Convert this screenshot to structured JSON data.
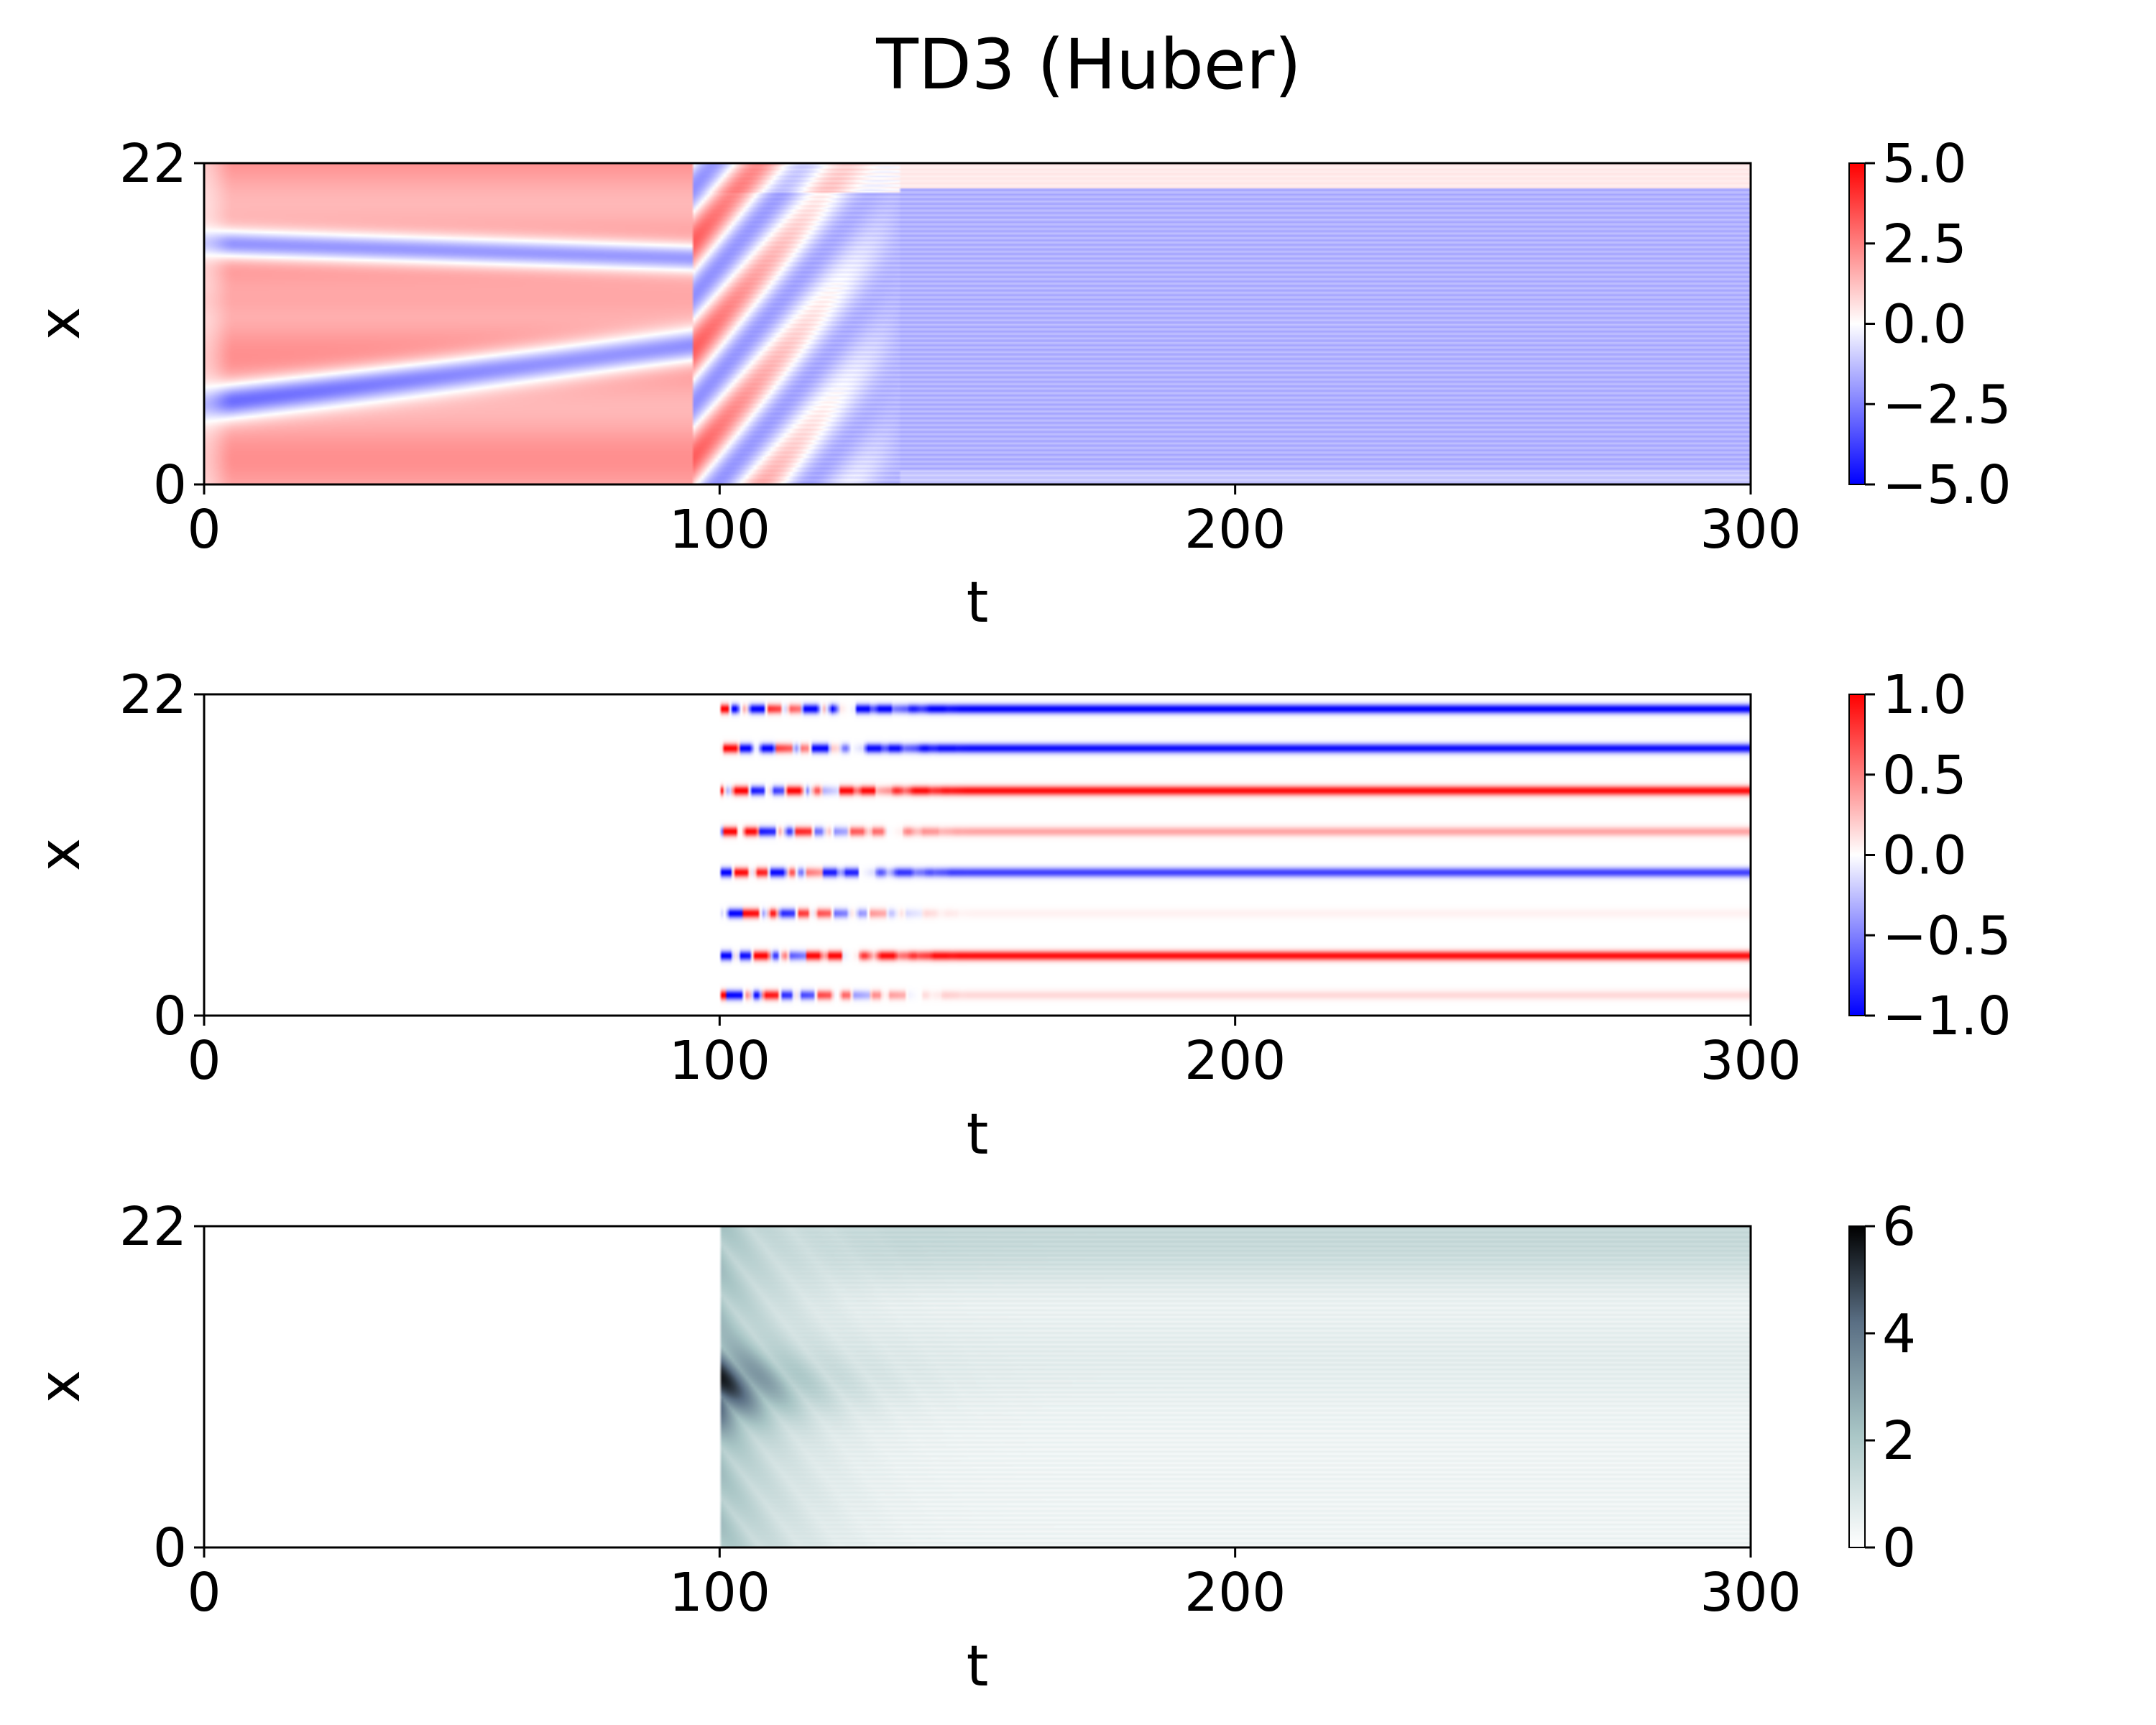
{
  "title": "TD3 (Huber)",
  "colors": {
    "diverging_neg": "#0000ff",
    "diverging_mid": "#ffffff",
    "diverging_pos": "#ff0000",
    "bone_low": "#ffffff",
    "bone_mid": "#a9c6c6",
    "bone_high": "#000000"
  },
  "chart_data": [
    {
      "type": "heatmap",
      "title": "",
      "xlabel": "t",
      "ylabel": "x",
      "xlim": [
        0,
        300
      ],
      "ylim": [
        0,
        22
      ],
      "xticks": [
        "0",
        "100",
        "200",
        "300"
      ],
      "yticks": [
        "0",
        "22"
      ],
      "colormap": "bwr",
      "clim": [
        -5.0,
        5.0
      ],
      "colorbar_ticks": [
        "5.0",
        "2.5",
        "0.0",
        "−2.5",
        "−5.0"
      ],
      "description_of_field": "Kuramoto–Sivashinsky state u(x,t): travelling red/blue bands until t≈100, chaotic transition t≈100–130, then near-uniform weakly negative field with faint horizontal striations",
      "features": [
        {
          "t": [
            0,
            95
          ],
          "band": "positive",
          "x_start": 2.0,
          "x_end": 5.0
        },
        {
          "t": [
            0,
            95
          ],
          "band": "negative",
          "x_start": 5.5,
          "x_end": 9.5
        },
        {
          "t": [
            0,
            95
          ],
          "band": "positive",
          "x_start": 13.5,
          "x_end": 12.5
        },
        {
          "t": [
            0,
            95
          ],
          "band": "negative",
          "x_start": 16.5,
          "x_end": 15.5
        },
        {
          "t": [
            130,
            300
          ],
          "band": "weak negative",
          "level": -1.5
        }
      ]
    },
    {
      "type": "heatmap",
      "title": "",
      "xlabel": "t",
      "ylabel": "x",
      "xlim": [
        0,
        300
      ],
      "ylim": [
        0,
        22
      ],
      "xticks": [
        "0",
        "100",
        "200",
        "300"
      ],
      "yticks": [
        "0",
        "22"
      ],
      "colormap": "bwr",
      "clim": [
        -1.0,
        1.0
      ],
      "colorbar_ticks": [
        "1.0",
        "0.5",
        "0.0",
        "−0.5",
        "−1.0"
      ],
      "description_of_field": "Control actuation, zero for t<100, eight actuator rows active from t=100",
      "actuators": [
        {
          "x": 1.4,
          "steady": 0.15
        },
        {
          "x": 4.1,
          "steady": 0.95
        },
        {
          "x": 7.0,
          "steady": 0.05
        },
        {
          "x": 9.8,
          "steady": -0.75
        },
        {
          "x": 12.6,
          "steady": 0.35
        },
        {
          "x": 15.4,
          "steady": 0.95
        },
        {
          "x": 18.3,
          "steady": -0.95
        },
        {
          "x": 21.0,
          "steady": -1.0
        }
      ]
    },
    {
      "type": "heatmap",
      "title": "",
      "xlabel": "t",
      "ylabel": "x",
      "xlim": [
        0,
        300
      ],
      "ylim": [
        0,
        22
      ],
      "xticks": [
        "0",
        "100",
        "200",
        "300"
      ],
      "yticks": [
        "0",
        "22"
      ],
      "colormap": "bone_r",
      "clim": [
        0,
        6
      ],
      "colorbar_ticks": [
        "6",
        "4",
        "2",
        "0"
      ],
      "description_of_field": "Error magnitude, blank for t<100, peaks ~4 near x≈11 at t≈100–110, settles to ~0.5–1.5 with higher values near x≈19–22"
    }
  ]
}
